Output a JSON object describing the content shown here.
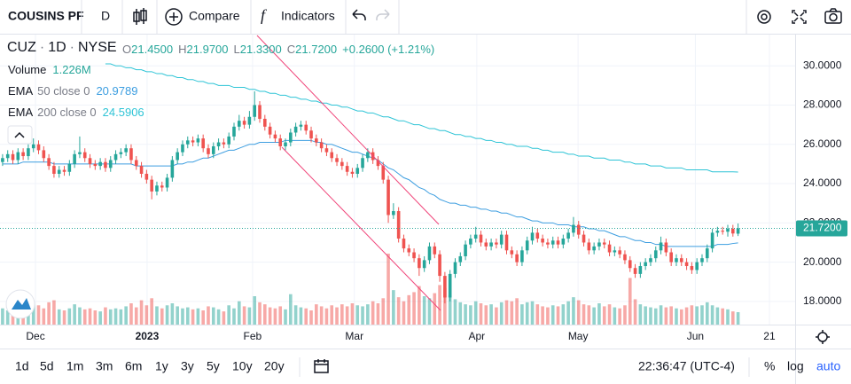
{
  "toolbar": {
    "symbol": "COUSINS PF",
    "interval": "D",
    "compare": "Compare",
    "indicators": "Indicators"
  },
  "chart_data": {
    "type": "candlestick",
    "legend": {
      "symbol": "CUZ",
      "interval": "1D",
      "exchange": "NYSE",
      "o_label": "O",
      "o": "21.4500",
      "h_label": "H",
      "h": "21.9700",
      "l_label": "L",
      "l": "21.3300",
      "c_label": "C",
      "c": "21.7200",
      "change": "+0.2600 (+1.21%)",
      "volume_label": "Volume",
      "volume": "1.226M",
      "ema1_label": "EMA",
      "ema1_params": "50 close 0",
      "ema1_value": "20.9789",
      "ema2_label": "EMA",
      "ema2_params": "200 close 0",
      "ema2_value": "24.5906"
    },
    "up_color": "#26a69a",
    "down_color": "#ef5350",
    "open": [
      25.1,
      25.3,
      25.5,
      25.2,
      25.6,
      25.4,
      25.8,
      26.0,
      25.7,
      25.3,
      24.9,
      24.5,
      24.7,
      24.6,
      25.0,
      25.5,
      25.6,
      25.3,
      25.0,
      24.9,
      25.1,
      24.8,
      25.2,
      25.5,
      25.6,
      25.8,
      25.2,
      24.9,
      24.5,
      24.2,
      23.6,
      23.9,
      23.8,
      24.3,
      25.2,
      25.6,
      26.0,
      26.2,
      26.1,
      26.3,
      25.8,
      25.5,
      25.9,
      26.1,
      26.0,
      26.4,
      26.9,
      27.2,
      27.0,
      27.4,
      28.0,
      27.3,
      26.9,
      26.5,
      26.3,
      25.9,
      26.1,
      26.6,
      26.9,
      27.0,
      26.7,
      26.3,
      26.1,
      25.8,
      25.6,
      25.3,
      25.1,
      24.9,
      24.6,
      24.5,
      24.8,
      25.3,
      25.6,
      25.2,
      24.9,
      24.2,
      22.4,
      22.6,
      21.2,
      20.7,
      20.5,
      20.2,
      19.7,
      20.1,
      20.8,
      20.4,
      19.3,
      18.2,
      19.4,
      20.0,
      20.3,
      20.9,
      21.2,
      21.4,
      21.0,
      20.8,
      21.0,
      20.9,
      21.4,
      20.6,
      20.4,
      20.0,
      20.6,
      21.1,
      21.5,
      21.2,
      21.0,
      20.9,
      21.1,
      20.9,
      21.2,
      21.5,
      21.9,
      21.4,
      21.0,
      20.6,
      20.8,
      21.0,
      20.9,
      20.5,
      20.6,
      20.4,
      20.1,
      19.7,
      19.4,
      19.8,
      20.0,
      20.2,
      20.6,
      21.0,
      20.5,
      20.0,
      20.2,
      20.0,
      19.8,
      19.6,
      20.0,
      20.2,
      20.7,
      21.5,
      21.6,
      21.55,
      21.7,
      21.45
    ],
    "high": [
      25.5,
      25.7,
      25.7,
      25.8,
      25.8,
      26.0,
      26.3,
      26.2,
      25.9,
      25.5,
      25.1,
      24.9,
      24.9,
      25.2,
      25.7,
      26.4,
      25.8,
      25.5,
      25.2,
      25.3,
      25.3,
      25.4,
      25.7,
      25.8,
      26.0,
      26.0,
      25.4,
      25.1,
      24.7,
      24.4,
      24.1,
      24.1,
      24.5,
      25.4,
      25.8,
      26.2,
      26.4,
      26.4,
      26.5,
      26.5,
      26.0,
      26.1,
      26.3,
      26.3,
      26.6,
      27.1,
      27.5,
      27.4,
      27.7,
      28.7,
      28.2,
      27.5,
      27.1,
      26.7,
      26.5,
      26.3,
      26.8,
      27.1,
      27.2,
      27.2,
      26.9,
      26.5,
      26.3,
      26.0,
      25.8,
      25.5,
      25.3,
      25.1,
      24.8,
      25.0,
      25.5,
      25.8,
      25.8,
      25.4,
      25.1,
      24.4,
      23.0,
      22.8,
      21.4,
      20.9,
      20.7,
      20.4,
      20.3,
      21.0,
      21.0,
      20.6,
      19.5,
      19.6,
      20.2,
      20.5,
      21.1,
      21.4,
      21.8,
      21.6,
      21.2,
      21.2,
      21.2,
      21.6,
      21.6,
      20.8,
      20.6,
      20.8,
      21.3,
      21.8,
      21.7,
      21.4,
      21.2,
      21.3,
      21.3,
      21.4,
      21.7,
      22.3,
      22.1,
      21.6,
      21.2,
      21.0,
      21.2,
      21.2,
      21.1,
      20.8,
      20.8,
      20.6,
      20.3,
      19.9,
      20.0,
      20.2,
      20.4,
      20.8,
      21.3,
      21.2,
      20.7,
      20.4,
      20.4,
      20.2,
      20.0,
      20.2,
      20.4,
      20.9,
      21.7,
      21.8,
      21.8,
      21.9,
      21.9,
      21.97
    ],
    "low": [
      24.9,
      25.1,
      25.0,
      25.0,
      25.2,
      25.2,
      25.6,
      25.5,
      25.1,
      24.7,
      24.3,
      24.3,
      24.4,
      24.4,
      24.8,
      25.3,
      25.1,
      24.8,
      24.7,
      24.7,
      24.6,
      24.6,
      25.0,
      25.3,
      25.4,
      25.0,
      24.7,
      24.3,
      24.0,
      23.2,
      23.4,
      23.6,
      23.6,
      24.1,
      25.0,
      25.4,
      25.8,
      25.9,
      25.9,
      25.6,
      25.3,
      25.3,
      25.7,
      25.8,
      25.8,
      26.2,
      26.7,
      26.8,
      26.8,
      27.2,
      27.1,
      26.7,
      26.3,
      26.1,
      25.7,
      25.7,
      25.9,
      26.4,
      26.7,
      26.5,
      26.1,
      25.9,
      25.6,
      25.4,
      25.1,
      24.9,
      24.7,
      24.4,
      24.3,
      24.3,
      24.6,
      25.1,
      25.0,
      24.7,
      24.0,
      22.0,
      22.2,
      21.0,
      20.5,
      20.3,
      20.0,
      19.3,
      19.5,
      19.9,
      20.2,
      19.0,
      17.9,
      18.0,
      19.2,
      19.8,
      20.1,
      20.7,
      21.0,
      20.8,
      20.6,
      20.6,
      20.7,
      20.7,
      20.4,
      20.2,
      19.8,
      19.8,
      20.4,
      20.9,
      21.0,
      20.8,
      20.7,
      20.7,
      20.7,
      20.7,
      21.0,
      21.3,
      21.2,
      20.8,
      20.4,
      20.4,
      20.6,
      20.7,
      20.3,
      20.3,
      20.2,
      19.9,
      19.5,
      19.2,
      19.2,
      19.6,
      19.8,
      20.0,
      20.4,
      20.3,
      19.8,
      19.8,
      19.8,
      19.6,
      19.4,
      19.4,
      19.8,
      20.0,
      20.5,
      21.3,
      21.4,
      21.3,
      21.3,
      21.33
    ],
    "close": [
      25.3,
      25.5,
      25.2,
      25.6,
      25.4,
      25.8,
      26.0,
      25.7,
      25.3,
      24.9,
      24.5,
      24.7,
      24.6,
      25.0,
      25.5,
      25.6,
      25.3,
      25.0,
      24.9,
      25.1,
      24.8,
      25.2,
      25.5,
      25.6,
      25.8,
      25.2,
      24.9,
      24.5,
      24.2,
      23.6,
      23.9,
      23.8,
      24.3,
      25.2,
      25.6,
      26.0,
      26.2,
      26.1,
      26.3,
      25.8,
      25.5,
      25.9,
      26.1,
      26.0,
      26.4,
      26.9,
      27.2,
      27.0,
      27.4,
      28.0,
      27.3,
      26.9,
      26.5,
      26.3,
      25.9,
      26.1,
      26.6,
      26.9,
      27.0,
      26.7,
      26.3,
      26.1,
      25.8,
      25.6,
      25.3,
      25.1,
      24.9,
      24.6,
      24.5,
      24.8,
      25.3,
      25.6,
      25.2,
      24.9,
      24.2,
      22.4,
      22.6,
      21.2,
      20.7,
      20.5,
      20.2,
      19.7,
      20.1,
      20.8,
      20.4,
      19.3,
      18.2,
      19.4,
      20.0,
      20.3,
      20.9,
      21.2,
      21.4,
      21.0,
      20.8,
      21.0,
      20.9,
      21.4,
      20.6,
      20.4,
      20.0,
      20.6,
      21.1,
      21.5,
      21.2,
      21.0,
      20.9,
      21.1,
      20.9,
      21.2,
      21.5,
      21.9,
      21.4,
      21.0,
      20.6,
      20.8,
      21.0,
      20.9,
      20.5,
      20.6,
      20.4,
      20.1,
      19.7,
      19.4,
      19.8,
      20.0,
      20.2,
      20.6,
      21.0,
      20.5,
      20.0,
      20.2,
      20.0,
      19.8,
      19.6,
      20.0,
      20.2,
      20.7,
      21.5,
      21.6,
      21.55,
      21.7,
      21.46,
      21.72
    ],
    "volume": [
      1.6,
      1.4,
      1.8,
      1.5,
      1.3,
      1.7,
      2.0,
      1.9,
      1.6,
      2.2,
      2.4,
      1.5,
      1.4,
      1.6,
      2.0,
      1.7,
      1.5,
      1.6,
      1.4,
      1.3,
      1.7,
      1.5,
      1.6,
      1.5,
      1.8,
      2.1,
      1.7,
      2.4,
      1.9,
      2.6,
      1.8,
      1.6,
      1.9,
      2.1,
      1.8,
      1.6,
      1.7,
      1.5,
      1.6,
      1.4,
      1.8,
      1.7,
      1.5,
      1.3,
      1.9,
      1.6,
      2.3,
      1.8,
      1.7,
      2.8,
      2.2,
      2.0,
      1.7,
      1.6,
      1.8,
      1.5,
      3.0,
      1.9,
      1.7,
      1.6,
      1.4,
      2.0,
      1.8,
      1.6,
      1.9,
      1.7,
      2.0,
      1.8,
      2.1,
      1.9,
      1.8,
      2.0,
      2.3,
      2.1,
      2.6,
      7.0,
      3.4,
      2.7,
      2.3,
      2.9,
      3.2,
      3.8,
      2.8,
      2.6,
      3.1,
      3.9,
      3.6,
      2.9,
      2.5,
      2.2,
      2.0,
      1.9,
      2.3,
      2.1,
      1.9,
      2.0,
      1.7,
      2.2,
      2.4,
      2.3,
      2.6,
      2.0,
      2.2,
      2.3,
      2.0,
      1.8,
      1.7,
      1.9,
      1.8,
      2.0,
      2.3,
      2.7,
      2.4,
      2.0,
      1.9,
      1.7,
      2.1,
      1.8,
      2.0,
      1.7,
      1.6,
      1.9,
      4.6,
      2.5,
      2.0,
      1.8,
      1.7,
      1.6,
      1.9,
      1.7,
      1.8,
      1.6,
      1.5,
      1.7,
      1.9,
      1.8,
      1.9,
      2.2,
      1.9,
      1.7,
      1.6,
      1.5,
      1.3,
      1.226
    ],
    "overlays": [
      {
        "color": "#3d9ee0",
        "values": [
          25.0,
          25.0,
          25.0,
          25.0,
          25.1,
          25.1,
          25.1,
          25.1,
          25.1,
          25.1,
          25.0,
          25.0,
          25.0,
          25.0,
          25.0,
          25.0,
          25.0,
          25.0,
          25.0,
          25.0,
          25.0,
          25.0,
          25.0,
          25.0,
          25.0,
          25.0,
          24.9,
          24.9,
          24.9,
          24.9,
          24.9,
          24.9,
          24.9,
          24.9,
          25.0,
          25.0,
          25.1,
          25.1,
          25.2,
          25.3,
          25.3,
          25.4,
          25.5,
          25.6,
          25.7,
          25.7,
          25.8,
          25.9,
          26.0,
          26.0,
          26.1,
          26.1,
          26.1,
          26.1,
          26.1,
          26.2,
          26.2,
          26.2,
          26.2,
          26.2,
          26.2,
          26.1,
          26.1,
          26.0,
          26.0,
          25.9,
          25.8,
          25.7,
          25.6,
          25.6,
          25.5,
          25.4,
          25.3,
          25.2,
          25.0,
          24.8,
          24.7,
          24.5,
          24.3,
          24.2,
          24.0,
          23.8,
          23.7,
          23.5,
          23.4,
          23.2,
          23.1,
          23.0,
          23.0,
          22.9,
          22.9,
          22.8,
          22.8,
          22.7,
          22.7,
          22.6,
          22.6,
          22.5,
          22.5,
          22.4,
          22.3,
          22.3,
          22.2,
          22.1,
          22.1,
          22.0,
          22.0,
          22.0,
          21.9,
          21.9,
          21.9,
          21.8,
          21.8,
          21.8,
          21.7,
          21.7,
          21.6,
          21.6,
          21.5,
          21.4,
          21.3,
          21.3,
          21.2,
          21.1,
          21.1,
          21.0,
          21.0,
          20.9,
          20.9,
          20.8,
          20.8,
          20.8,
          20.8,
          20.8,
          20.8,
          20.8,
          20.8,
          20.8,
          20.8,
          20.9,
          20.9,
          20.9,
          20.95,
          20.98
        ]
      },
      {
        "color": "#2ec4d6",
        "values": [
          null,
          null,
          null,
          null,
          null,
          null,
          null,
          null,
          null,
          null,
          null,
          null,
          null,
          null,
          null,
          null,
          null,
          null,
          null,
          null,
          30.1,
          30.1,
          30.0,
          30.0,
          29.9,
          29.9,
          29.8,
          29.8,
          29.7,
          29.7,
          29.6,
          29.6,
          29.5,
          29.5,
          29.4,
          29.4,
          29.3,
          29.3,
          29.2,
          29.2,
          29.1,
          29.1,
          29.0,
          29.0,
          29.0,
          28.9,
          28.9,
          28.9,
          28.8,
          28.8,
          28.7,
          28.7,
          28.6,
          28.6,
          28.5,
          28.5,
          28.4,
          28.4,
          28.3,
          28.3,
          28.2,
          28.2,
          28.1,
          28.1,
          28.0,
          28.0,
          27.9,
          27.9,
          27.8,
          27.7,
          27.7,
          27.6,
          27.6,
          27.5,
          27.4,
          27.4,
          27.3,
          27.2,
          27.2,
          27.1,
          27.0,
          27.0,
          26.9,
          26.8,
          26.8,
          26.7,
          26.7,
          26.6,
          26.5,
          26.5,
          26.4,
          26.4,
          26.3,
          26.3,
          26.2,
          26.2,
          26.1,
          26.1,
          26.0,
          26.0,
          25.9,
          25.9,
          25.9,
          25.8,
          25.8,
          25.7,
          25.7,
          25.6,
          25.6,
          25.6,
          25.5,
          25.5,
          25.4,
          25.4,
          25.4,
          25.3,
          25.3,
          25.3,
          25.2,
          25.2,
          25.2,
          25.1,
          25.1,
          25.0,
          25.0,
          25.0,
          24.9,
          24.9,
          24.9,
          24.8,
          24.8,
          24.8,
          24.8,
          24.7,
          24.7,
          24.7,
          24.7,
          24.7,
          24.6,
          24.6,
          24.6,
          24.6,
          24.6,
          24.59
        ]
      }
    ],
    "last_price": {
      "value": 21.72,
      "label": "21.7200"
    },
    "xlim": [
      -0.5,
      154.1
    ],
    "xticks": [
      {
        "value": 6.4,
        "label": "Dec"
      },
      {
        "value": 28.1,
        "label": "2023"
      },
      {
        "value": 48.6,
        "label": "Feb"
      },
      {
        "value": 68.4,
        "label": "Mar"
      },
      {
        "value": 92.2,
        "label": "Apr"
      },
      {
        "value": 111.9,
        "label": "May"
      },
      {
        "value": 134.7,
        "label": "Jun"
      },
      {
        "value": 149.1,
        "label": "21"
      }
    ],
    "ylim": [
      16.82,
      31.59
    ],
    "yticks": [
      {
        "value": 18,
        "label": "18.0000"
      },
      {
        "value": 20,
        "label": "20.0000"
      },
      {
        "value": 22,
        "label": "22.0000"
      },
      {
        "value": 24,
        "label": "24.0000"
      },
      {
        "value": 26,
        "label": "26.0000"
      },
      {
        "value": 28,
        "label": "28.0000"
      },
      {
        "value": 30,
        "label": "30.0000"
      }
    ],
    "grid": true
  },
  "bottom_bar": {
    "ranges": [
      "1d",
      "5d",
      "1m",
      "3m",
      "6m",
      "1y",
      "3y",
      "5y",
      "10y",
      "20y"
    ],
    "time": "22:36:47 (UTC-4)",
    "percent": "%",
    "log": "log",
    "auto": "auto"
  }
}
